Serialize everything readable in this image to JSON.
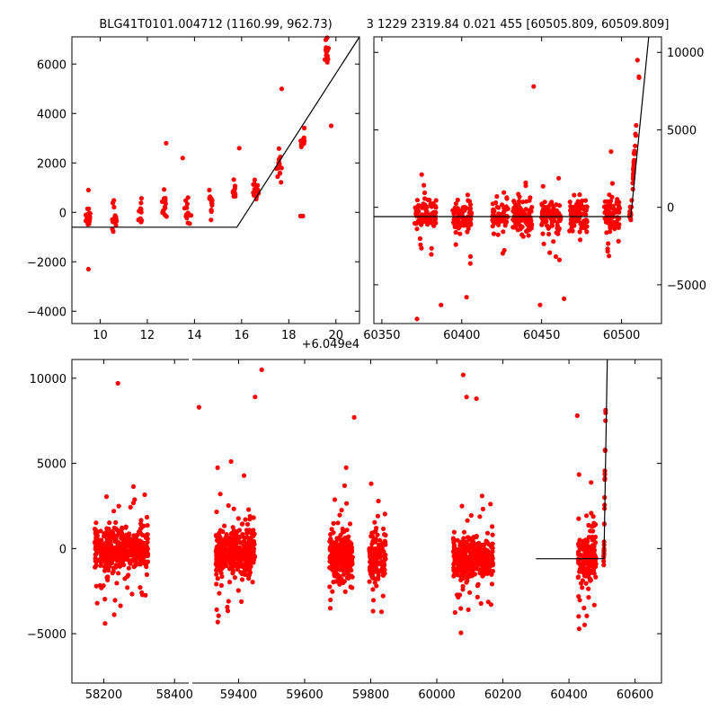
{
  "titles": {
    "left": "BLG41T0101.004712 (1160.99, 962.73)",
    "right": "3 1229 2319.84 0.021 455 [60505.809, 60509.809]"
  },
  "offset_label": "+6.049e4",
  "colors": {
    "points": "#ff0000",
    "model": "#000000",
    "axes": "#000000"
  },
  "chart_data": [
    {
      "type": "scatter",
      "panel": "top-left",
      "x_ticks": [
        "10",
        "12",
        "14",
        "16",
        "18",
        "20"
      ],
      "y_ticks": [
        "6000",
        "4000",
        "2000",
        "0",
        "−2000",
        "−4000"
      ],
      "xlim": [
        8.8,
        21.0
      ],
      "ylim": [
        -4500,
        7100
      ],
      "x_offset": 60490,
      "clusters": [
        {
          "x": 9.5,
          "y": -300,
          "n": 18
        },
        {
          "x": 10.6,
          "y": -250,
          "n": 16
        },
        {
          "x": 11.7,
          "y": 0,
          "n": 14
        },
        {
          "x": 12.7,
          "y": 250,
          "n": 14
        },
        {
          "x": 13.7,
          "y": 100,
          "n": 14
        },
        {
          "x": 14.7,
          "y": 300,
          "n": 14
        },
        {
          "x": 15.7,
          "y": 800,
          "n": 12
        },
        {
          "x": 16.6,
          "y": 900,
          "n": 14
        },
        {
          "x": 17.6,
          "y": 1800,
          "n": 14
        },
        {
          "x": 18.6,
          "y": 2800,
          "n": 12
        },
        {
          "x": 19.6,
          "y": 6500,
          "n": 14
        }
      ],
      "outliers": [
        [
          9.5,
          -2300
        ],
        [
          9.5,
          900
        ],
        [
          12.8,
          2800
        ],
        [
          13.5,
          2200
        ],
        [
          15.9,
          2600
        ],
        [
          17.7,
          5000
        ],
        [
          18.5,
          -150
        ],
        [
          18.6,
          -150
        ],
        [
          19.8,
          3500
        ]
      ],
      "model": [
        [
          8.8,
          -600
        ],
        [
          15.8,
          -600
        ],
        [
          21.0,
          7100
        ]
      ]
    },
    {
      "type": "scatter",
      "panel": "top-right",
      "x_ticks": [
        "60350",
        "60400",
        "60450",
        "60500"
      ],
      "y_ticks": [
        "10000",
        "5000",
        "0",
        "−5000"
      ],
      "xlim": [
        60345,
        60525
      ],
      "ylim": [
        -7500,
        11000
      ],
      "clusters": [
        {
          "x": 60377,
          "y": -600,
          "w": 14,
          "n": 90
        },
        {
          "x": 60400,
          "y": -700,
          "w": 12,
          "n": 90
        },
        {
          "x": 60424,
          "y": -500,
          "w": 10,
          "n": 60
        },
        {
          "x": 60438,
          "y": -600,
          "w": 12,
          "n": 100
        },
        {
          "x": 60456,
          "y": -600,
          "w": 12,
          "n": 100
        },
        {
          "x": 60473,
          "y": -550,
          "w": 12,
          "n": 90
        },
        {
          "x": 60494,
          "y": -350,
          "w": 10,
          "n": 90
        }
      ],
      "outliers": [
        [
          60445,
          7800
        ],
        [
          60372,
          -7200
        ],
        [
          60387,
          -6300
        ],
        [
          60403,
          -5800
        ],
        [
          60449,
          -6300
        ],
        [
          60464,
          -5900
        ],
        [
          60510,
          9500
        ]
      ],
      "model": [
        [
          60345,
          -600
        ],
        [
          60505.8,
          -600
        ],
        [
          60517,
          11000
        ]
      ]
    },
    {
      "type": "scatter",
      "panel": "bottom",
      "x_ticks": [
        "58200",
        "58400",
        "59400",
        "59600",
        "59800",
        "60000",
        "60200",
        "60400",
        "60600"
      ],
      "y_ticks": [
        "10000",
        "5000",
        "0",
        "−5000"
      ],
      "ylim": [
        -7900,
        11100
      ],
      "segments": [
        {
          "xlim": [
            58110,
            58440
          ],
          "clusters": [
            {
              "x": 58250,
              "y": 0,
              "w": 150,
              "n": 450
            }
          ]
        },
        {
          "xlim": [
            59260,
            60680
          ],
          "clusters": [
            {
              "x": 59390,
              "y": -200,
              "w": 120,
              "n": 350
            },
            {
              "x": 59710,
              "y": -400,
              "w": 70,
              "n": 250
            },
            {
              "x": 59820,
              "y": -500,
              "w": 50,
              "n": 150
            },
            {
              "x": 60110,
              "y": -550,
              "w": 120,
              "n": 350
            },
            {
              "x": 60455,
              "y": -600,
              "w": 55,
              "n": 200
            }
          ]
        }
      ],
      "outliers": [
        [
          58240,
          9700
        ],
        [
          59280,
          8300
        ],
        [
          59470,
          10500
        ],
        [
          59450,
          8900
        ],
        [
          60080,
          10200
        ],
        [
          60090,
          8900
        ],
        [
          60120,
          8800
        ],
        [
          59750,
          7700
        ],
        [
          60425,
          7800
        ]
      ],
      "model": [
        [
          60300,
          -600
        ],
        [
          60505.8,
          -600
        ],
        [
          60516,
          11100
        ]
      ]
    }
  ]
}
